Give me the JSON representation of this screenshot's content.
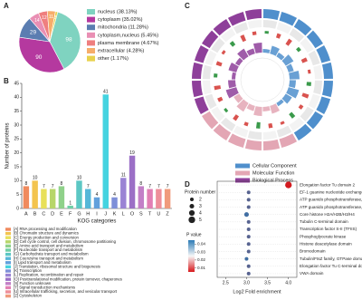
{
  "chart_data": [
    {
      "type": "pie",
      "panel_label": "A",
      "labels": [
        "nucleus (38.13%)",
        "cytoplasm (35.02%)",
        "mitochondria (11.28%)",
        "cytoplasm,nucleus (5.45%)",
        "plasma membrane (4.67%)",
        "extracellular (4.28%)",
        "other (1.17%)"
      ],
      "values": [
        98,
        90,
        29,
        14,
        12,
        11,
        3
      ],
      "colors": [
        "#7fd3c0",
        "#b5399f",
        "#5b7db1",
        "#e98fb4",
        "#ef7f7f",
        "#f6ad6a",
        "#e8d24c"
      ]
    },
    {
      "type": "bar",
      "panel_label": "B",
      "ylabel": "Number of proteins",
      "xlabel": "KOG categories",
      "categories": [
        "A",
        "B",
        "C",
        "D",
        "E",
        "F",
        "G",
        "H",
        "I",
        "J",
        "K",
        "L",
        "O",
        "S",
        "T",
        "U",
        "Z"
      ],
      "values": [
        8,
        10,
        7,
        7,
        8,
        1,
        10,
        7,
        4,
        41,
        4,
        11,
        19,
        8,
        7,
        7,
        7
      ],
      "colors": [
        "#f08a5d",
        "#f3c44f",
        "#e8e05a",
        "#b7d66a",
        "#8fd18a",
        "#6fcfa6",
        "#5cc7c4",
        "#56b7d8",
        "#62a0dc",
        "#45d3e0",
        "#7e8fd8",
        "#9a83d4",
        "#9b6fc6",
        "#c37fc7",
        "#e27fb4",
        "#ee8f9a",
        "#f09b7c"
      ],
      "ylim": [
        0,
        45
      ],
      "yticks": [
        0,
        5,
        10,
        15,
        20,
        25,
        30,
        35,
        40,
        45
      ],
      "descriptions": [
        "[A] RNA processing and modification",
        "[B] Chromatin structure and dynamics",
        "[C] Energy production and conversion",
        "[D] Cell cycle control, cell division, chromosome partitioning",
        "[E] Amino acid transport and metabolism",
        "[F] Nucleotide transport and metabolism",
        "[G] Carbohydrate transport and metabolism",
        "[H] Coenzyme transport and metabolism",
        "[I] Lipid transport and metabolism",
        "[J] Translation, ribosomal structure and biogenesis",
        "[K] Transcription",
        "[L] Replication, recombination and repair",
        "[O] Posttranslational modification, protein turnover, chaperones",
        "[S] Function unknown",
        "[T] Signal transduction mechanisms",
        "[U] Intracellular trafficking, secretion, and vesicular transport",
        "[Z] Cytoskeleton"
      ]
    },
    {
      "type": "circos",
      "panel_label": "C",
      "series": [
        {
          "name": "Cellular Component",
          "color": "#4f8fcc"
        },
        {
          "name": "Molecular Function",
          "color": "#e3a6b4"
        },
        {
          "name": "Biological Process",
          "color": "#8e3f9a"
        }
      ]
    },
    {
      "type": "dot",
      "panel_label": "D",
      "xlabel": "Log2 Fold enrichment",
      "categories": [
        "Elongation factor Tu domain 2",
        "EF-1 guanine nucleotide exchange domain",
        "ATP guanido phosphotransferase, N-terminal domain",
        "ATP guanido phosphotransferase, C-terminal domain",
        "Core histone H2A/H2B/H3/H4",
        "Tubulin C-terminal domain",
        "Transcription factor S-II (TFIIS)",
        "Phosphoglycerate kinase",
        "Histone deacetylase domain",
        "Bromodomain",
        "Tubulin/FtsZ family, GTPase domain",
        "Elongation factor Tu C-terminal domain",
        "VWA domain"
      ],
      "x": [
        4.0,
        3.05,
        3.05,
        3.05,
        3.0,
        3.05,
        3.05,
        3.05,
        3.05,
        3.05,
        3.0,
        3.05,
        3.05
      ],
      "sizes": [
        5,
        2,
        2,
        2,
        3,
        2,
        2,
        2,
        2,
        2,
        2,
        2,
        2
      ],
      "pvalues": [
        0.006,
        0.035,
        0.035,
        0.035,
        0.04,
        0.035,
        0.035,
        0.035,
        0.035,
        0.035,
        0.04,
        0.035,
        0.035
      ],
      "xlim": [
        2.3,
        4.2
      ],
      "xticks": [
        2.5,
        {
          "value": 3.0,
          "label": "3.0"
        },
        3.5,
        {
          "value": 4.0,
          "label": "4.0"
        }
      ],
      "size_title": "Protein number",
      "size_ticks": [
        2,
        3,
        4,
        5
      ],
      "color_title": "P value",
      "color_ticks": [
        0.04,
        0.03,
        0.02,
        0.01
      ],
      "clim": [
        0.005,
        0.045
      ],
      "color_low": "#d7191c",
      "color_high": "#2c7bb6"
    }
  ]
}
